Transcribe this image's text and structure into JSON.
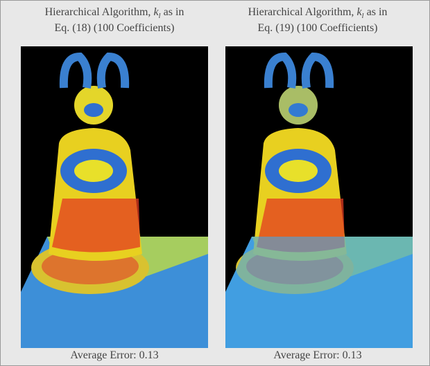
{
  "panels": [
    {
      "title": {
        "line1_prefix": "Hierarchical Algorithm,",
        "symbol": "k",
        "subscript": "l",
        "line1_suffix": "as in",
        "line2": "Eq. (18) (100 Coefficients)"
      },
      "caption": "Average Error: 0.13"
    },
    {
      "title": {
        "line1_prefix": "Hierarchical Algorithm,",
        "symbol": "k",
        "subscript": "l",
        "line1_suffix": "as in",
        "line2": "Eq. (19) (100 Coefficients)"
      },
      "caption": "Average Error: 0.13"
    }
  ]
}
